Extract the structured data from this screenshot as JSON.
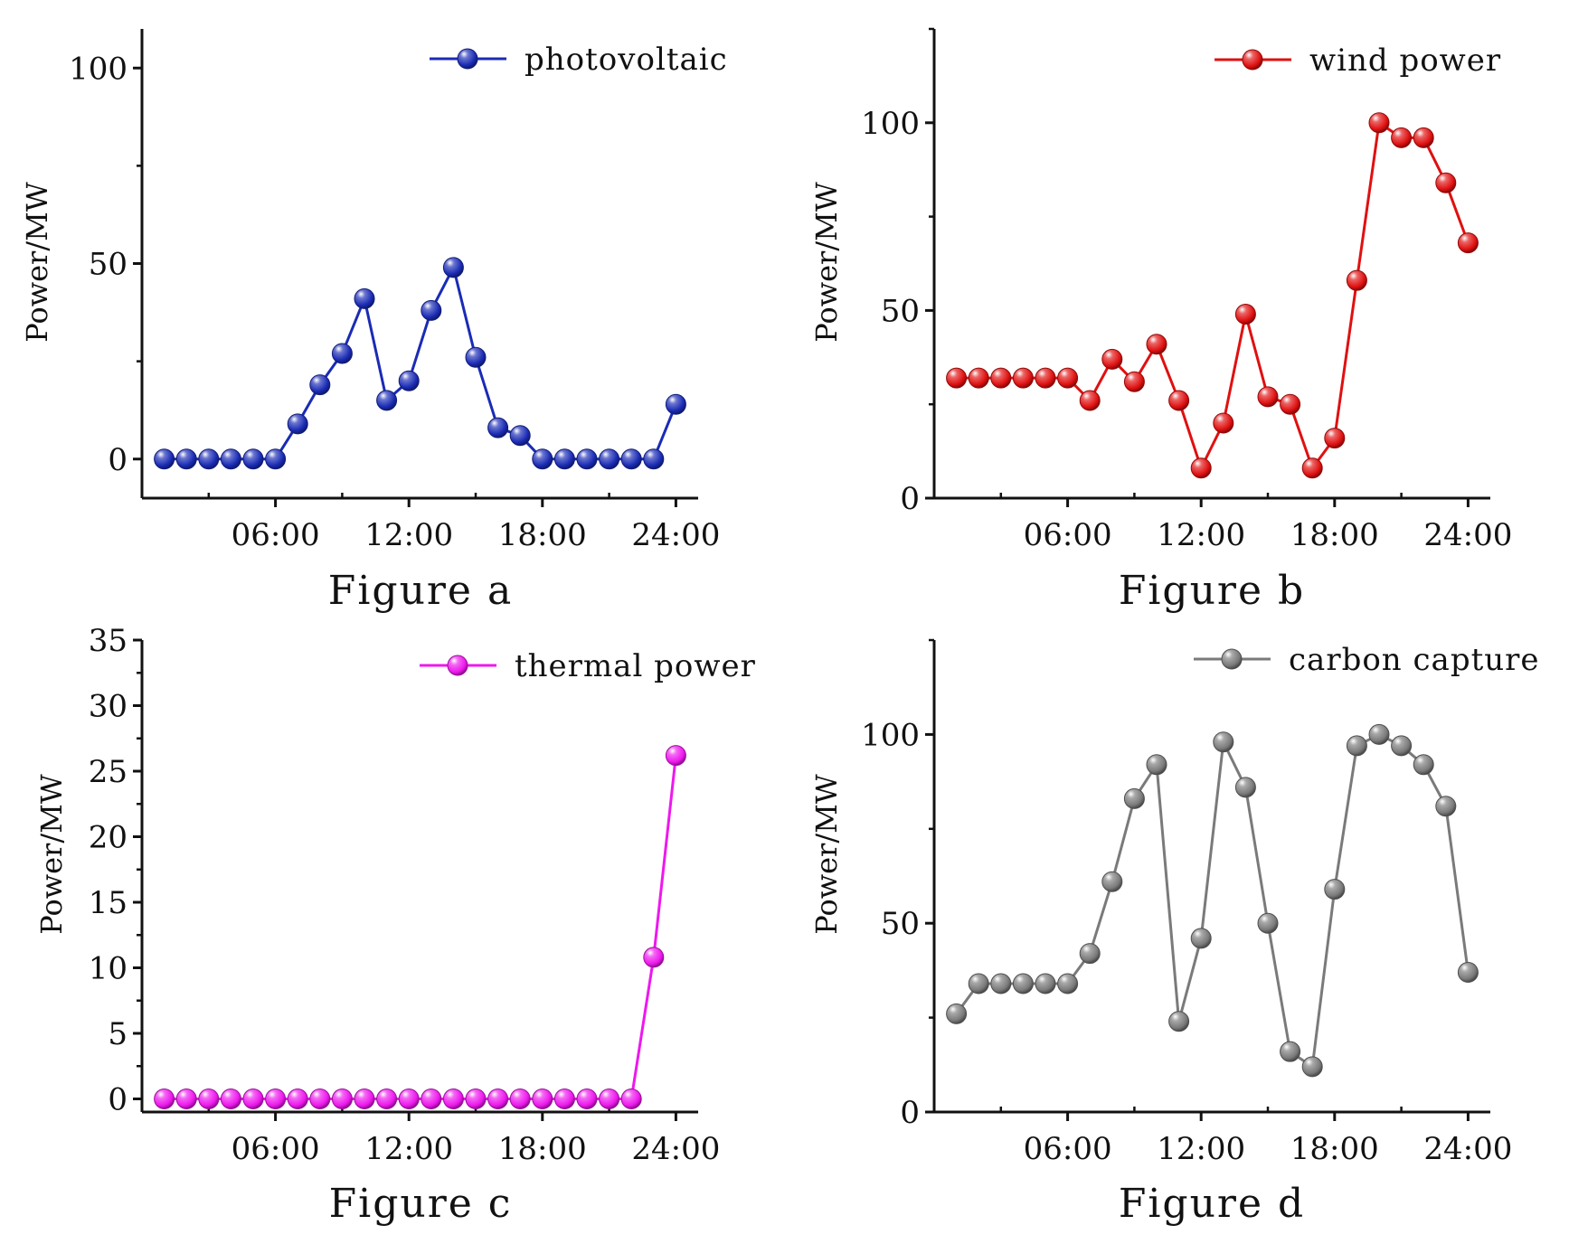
{
  "chart_data": [
    {
      "type": "line",
      "caption": "Figure a",
      "ylabel": "Power/MW",
      "xlabel": "",
      "ylim": [
        -10,
        110
      ],
      "yticks": [
        0,
        50,
        100
      ],
      "yticks_minor": [
        25,
        75
      ],
      "xlim": [
        0,
        25
      ],
      "xticks": [
        6,
        12,
        18,
        24
      ],
      "xtick_labels": [
        "06:00",
        "12:00",
        "18:00",
        "24:00"
      ],
      "xticks_minor": [
        3,
        9,
        15,
        21
      ],
      "legend_position": "top-right",
      "series": [
        {
          "name": "photovoltaic",
          "color": "#1a2bb5",
          "x": [
            1,
            2,
            3,
            4,
            5,
            6,
            7,
            8,
            9,
            10,
            11,
            12,
            13,
            14,
            15,
            16,
            17,
            18,
            19,
            20,
            21,
            22,
            23,
            24
          ],
          "values": [
            0,
            0,
            0,
            0,
            0,
            0,
            9,
            19,
            27,
            41,
            15,
            20,
            38,
            49,
            26,
            8,
            6,
            0,
            0,
            0,
            0,
            0,
            0,
            14
          ]
        }
      ]
    },
    {
      "type": "line",
      "caption": "Figure b",
      "ylabel": "Power/MW",
      "xlabel": "",
      "ylim": [
        0,
        125
      ],
      "yticks": [
        0,
        50,
        100
      ],
      "yticks_minor": [
        25,
        75,
        125
      ],
      "xlim": [
        0,
        25
      ],
      "xticks": [
        6,
        12,
        18,
        24
      ],
      "xtick_labels": [
        "06:00",
        "12:00",
        "18:00",
        "24:00"
      ],
      "xticks_minor": [
        3,
        9,
        15,
        21
      ],
      "legend_position": "top-right",
      "series": [
        {
          "name": "wind power",
          "color": "#e01010",
          "x": [
            1,
            2,
            3,
            4,
            5,
            6,
            7,
            8,
            9,
            10,
            11,
            12,
            13,
            14,
            15,
            16,
            17,
            18,
            19,
            20,
            21,
            22,
            23,
            24
          ],
          "values": [
            32,
            32,
            32,
            32,
            32,
            32,
            26,
            37,
            31,
            41,
            26,
            8,
            20,
            49,
            27,
            25,
            8,
            16,
            58,
            100,
            96,
            96,
            84,
            68
          ]
        }
      ]
    },
    {
      "type": "line",
      "caption": "Figure c",
      "ylabel": "Power/MW",
      "xlabel": "",
      "ylim": [
        -1,
        35
      ],
      "yticks": [
        0,
        5,
        10,
        15,
        20,
        25,
        30,
        35
      ],
      "yticks_minor": [
        2.5,
        7.5,
        12.5,
        17.5,
        22.5,
        27.5,
        32.5
      ],
      "xlim": [
        0,
        25
      ],
      "xticks": [
        6,
        12,
        18,
        24
      ],
      "xtick_labels": [
        "06:00",
        "12:00",
        "18:00",
        "24:00"
      ],
      "xticks_minor": [
        3,
        9,
        15,
        21
      ],
      "legend_position": "top-right",
      "series": [
        {
          "name": "thermal power",
          "color": "#ee18ee",
          "x": [
            1,
            2,
            3,
            4,
            5,
            6,
            7,
            8,
            9,
            10,
            11,
            12,
            13,
            14,
            15,
            16,
            17,
            18,
            19,
            20,
            21,
            22,
            23,
            24
          ],
          "values": [
            0,
            0,
            0,
            0,
            0,
            0,
            0,
            0,
            0,
            0,
            0,
            0,
            0,
            0,
            0,
            0,
            0,
            0,
            0,
            0,
            0,
            0,
            10.8,
            26.2
          ]
        }
      ]
    },
    {
      "type": "line",
      "caption": "Figure d",
      "ylabel": "Power/MW",
      "xlabel": "",
      "ylim": [
        0,
        125
      ],
      "yticks": [
        0,
        50,
        100
      ],
      "yticks_minor": [
        25,
        75,
        125
      ],
      "xlim": [
        0,
        25
      ],
      "xticks": [
        6,
        12,
        18,
        24
      ],
      "xtick_labels": [
        "06:00",
        "12:00",
        "18:00",
        "24:00"
      ],
      "xticks_minor": [
        3,
        9,
        15,
        21
      ],
      "legend_position": "top-right",
      "series": [
        {
          "name": "carbon capture",
          "color": "#7a7a7a",
          "x": [
            1,
            2,
            3,
            4,
            5,
            6,
            7,
            8,
            9,
            10,
            11,
            12,
            13,
            14,
            15,
            16,
            17,
            18,
            19,
            20,
            21,
            22,
            23,
            24
          ],
          "values": [
            26,
            34,
            34,
            34,
            34,
            34,
            42,
            61,
            83,
            92,
            24,
            46,
            98,
            86,
            50,
            16,
            12,
            59,
            97,
            100,
            97,
            92,
            81,
            37
          ]
        }
      ]
    }
  ]
}
